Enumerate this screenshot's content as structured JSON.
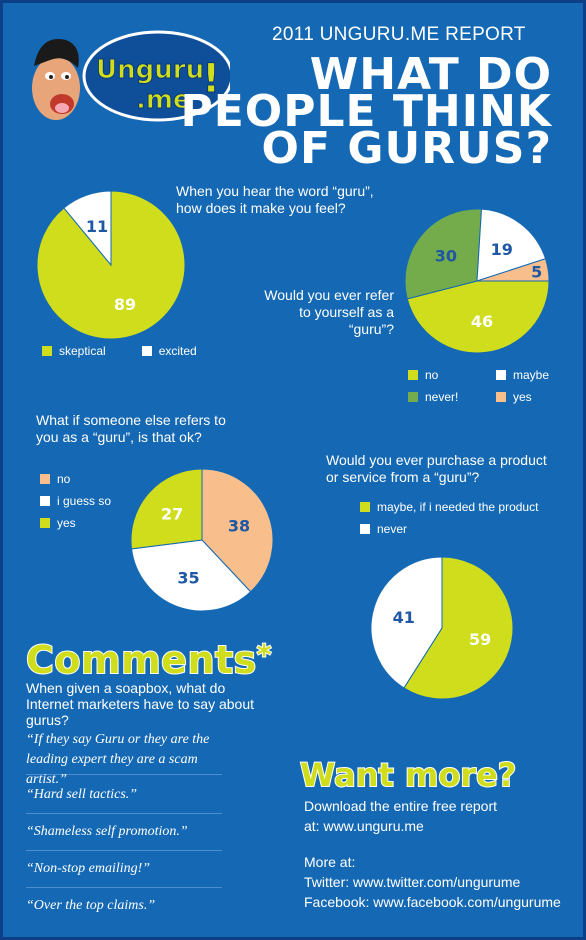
{
  "report_title": "2011 UNGURU.ME REPORT",
  "headline": [
    "WHAT DO",
    "PEOPLE THINK",
    "OF GURUS?"
  ],
  "logo": {
    "line1": "Unguru",
    "line2": ".me",
    "mark": "!"
  },
  "colors": {
    "background": "#1569b4",
    "lime": "#cfdd1c",
    "white": "#ffffff",
    "green": "#74ac4c",
    "peach": "#f8bf8d",
    "label_blue": "#1e58a4"
  },
  "chart_data": [
    {
      "type": "pie",
      "question": "When you hear the word “guru”, how does it make you feel?",
      "categories": [
        "skeptical",
        "excited"
      ],
      "values": [
        89,
        11
      ],
      "legend": [
        "skeptical",
        "excited"
      ]
    },
    {
      "type": "pie",
      "question": "Would you ever refer to yourself as a “guru”?",
      "categories": [
        "no",
        "never!",
        "maybe",
        "yes"
      ],
      "values": [
        46,
        30,
        19,
        5
      ],
      "legend": [
        "no",
        "maybe",
        "never!",
        "yes"
      ]
    },
    {
      "type": "pie",
      "question": "What if someone else refers to you as a “guru”, is that ok?",
      "categories": [
        "no",
        "i guess so",
        "yes"
      ],
      "values": [
        38,
        35,
        27
      ],
      "legend": [
        "no",
        "i guess so",
        "yes"
      ]
    },
    {
      "type": "pie",
      "question": "Would you ever purchase a product or service from a “guru”?",
      "categories": [
        "maybe, if i needed the product",
        "never"
      ],
      "values": [
        59,
        41
      ],
      "legend": [
        "maybe, if i needed the product",
        "never"
      ]
    }
  ],
  "comments": {
    "title": "Comments",
    "star": "*",
    "intro": "When given a soapbox, what do Internet marketers have to say about gurus?",
    "quotes": [
      "“If they say Guru or they are the leading expert they are a scam artist.”",
      "“Hard sell tactics.”",
      "“Shameless self promotion.”",
      "“Non-stop emailing!”",
      "“Over the top claims.”"
    ]
  },
  "more": {
    "title": "Want more?",
    "download": "Download the entire free report",
    "at": "at: www.unguru.me",
    "more_at": "More at:",
    "twitter": "Twitter: www.twitter.com/ungurume",
    "facebook": "Facebook: www.facebook.com/ungurume"
  }
}
